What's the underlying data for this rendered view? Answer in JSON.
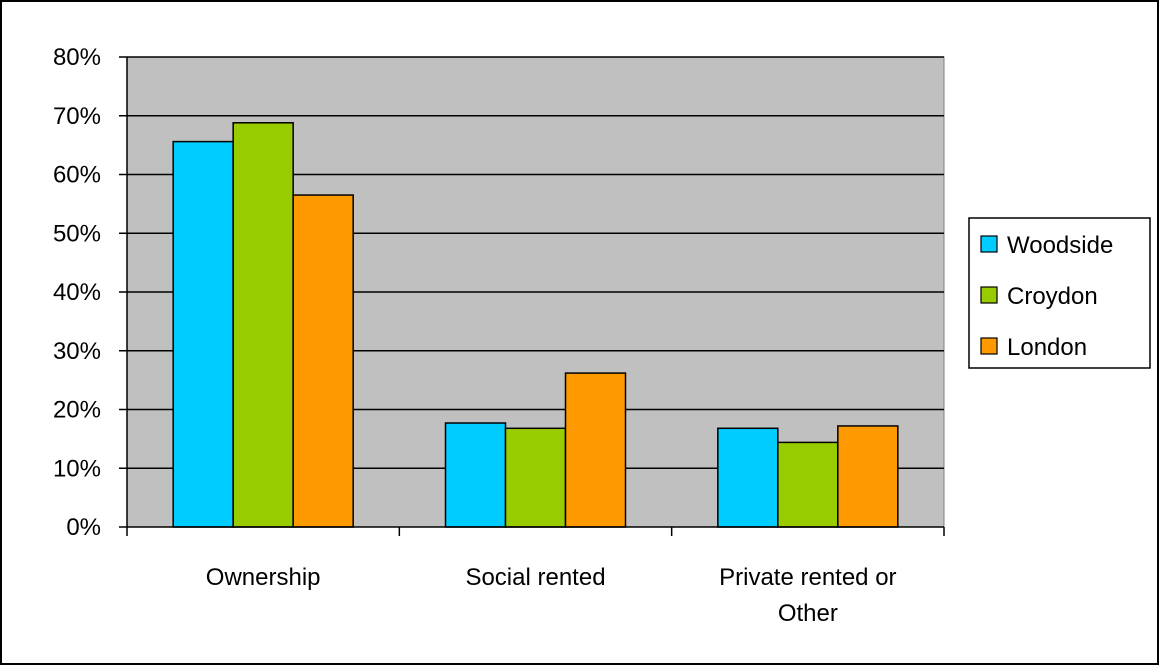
{
  "chart_data": {
    "type": "bar",
    "title": "",
    "xlabel": "",
    "ylabel": "",
    "categories": [
      "Ownership",
      "Social rented",
      "Private rented or Other"
    ],
    "category_lines": [
      [
        "Ownership"
      ],
      [
        "Social rented"
      ],
      [
        "Private rented or",
        "Other"
      ]
    ],
    "series": [
      {
        "name": "Woodside",
        "values": [
          65.6,
          17.7,
          16.8
        ],
        "color": "#00CCFF"
      },
      {
        "name": "Croydon",
        "values": [
          68.8,
          16.8,
          14.4
        ],
        "color": "#99CC00"
      },
      {
        "name": "London",
        "values": [
          56.5,
          26.2,
          17.2
        ],
        "color": "#FF9900"
      }
    ],
    "ylim": [
      0,
      80
    ],
    "yticks": [
      0,
      10,
      20,
      30,
      40,
      50,
      60,
      70,
      80
    ],
    "ytick_labels": [
      "0%",
      "10%",
      "20%",
      "30%",
      "40%",
      "50%",
      "60%",
      "70%",
      "80%"
    ],
    "grid": true,
    "plot_background": "#C0C0C0",
    "legend_position": "right"
  }
}
